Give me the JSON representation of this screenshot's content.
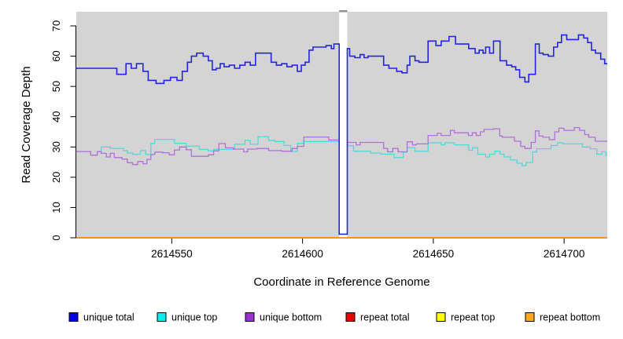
{
  "chart_data": {
    "type": "line",
    "subtype": "step-coverage-plot",
    "title": "",
    "xlabel": "Coordinate in Reference Genome",
    "ylabel": "Read Coverage Depth",
    "xlim": [
      2614513.5,
      2614716.5
    ],
    "ylim": [
      0,
      70
    ],
    "xticks": [
      "2614550",
      "2614600",
      "2614650",
      "2614700"
    ],
    "xtick_values": [
      2614550,
      2614600,
      2614650,
      2614700
    ],
    "yticks": [
      "0",
      "10",
      "20",
      "30",
      "40",
      "50",
      "60",
      "70"
    ],
    "ytick_values": [
      0,
      10,
      20,
      30,
      40,
      50,
      60,
      70
    ],
    "grid": false,
    "legend_position": "bottom-horizontal",
    "panel_bg_color": "#D4D4D4",
    "gap_region": {
      "x0": 2614614.0,
      "x1": 2614617.1,
      "fill": "#FFFFFF",
      "cap_color": "#909090"
    },
    "series": [
      {
        "name": "repeat total",
        "color": "#DD0000",
        "width": 1.4,
        "layer": 1,
        "points": [
          [
            2614513.5,
            0
          ],
          [
            2614716.5,
            0
          ]
        ]
      },
      {
        "name": "repeat top",
        "color": "#FFFF00",
        "width": 1.4,
        "layer": 1,
        "points": [
          [
            2614513.5,
            0
          ],
          [
            2614716.5,
            0
          ]
        ]
      },
      {
        "name": "unique top",
        "color": "#55D8D8",
        "width": 1.3,
        "layer": 1,
        "points": [
          [
            2614513.5,
            28.5
          ],
          [
            2614519,
            27.3
          ],
          [
            2614521.5,
            28.5
          ],
          [
            2614523,
            30
          ],
          [
            2614526.5,
            29.5
          ],
          [
            2614531.5,
            28.8
          ],
          [
            2614533,
            28
          ],
          [
            2614535,
            27.5
          ],
          [
            2614538,
            28.8
          ],
          [
            2614540,
            27.5
          ],
          [
            2614542,
            31.2
          ],
          [
            2614543.5,
            32.5
          ],
          [
            2614551,
            31.2
          ],
          [
            2614555.5,
            30.3
          ],
          [
            2614560.5,
            29.2
          ],
          [
            2614564,
            28.7
          ],
          [
            2614566,
            29.2
          ],
          [
            2614574,
            30.9
          ],
          [
            2614578,
            32.2
          ],
          [
            2614580,
            30.9
          ],
          [
            2614583,
            33.4
          ],
          [
            2614587,
            32.2
          ],
          [
            2614589.5,
            31.8
          ],
          [
            2614593,
            30.5
          ],
          [
            2614595.5,
            28.5
          ],
          [
            2614598,
            31.2
          ],
          [
            2614600.5,
            31.8
          ],
          [
            2614614,
            32
          ],
          [
            2614617.1,
            30.4
          ],
          [
            2614619.5,
            28.6
          ],
          [
            2614626,
            28
          ],
          [
            2614630,
            27.6
          ],
          [
            2614635,
            26.5
          ],
          [
            2614638.5,
            28.3
          ],
          [
            2614640,
            29.8
          ],
          [
            2614643,
            28.6
          ],
          [
            2614648,
            31.4
          ],
          [
            2614653,
            30.7
          ],
          [
            2614654.5,
            31.4
          ],
          [
            2614658,
            30.7
          ],
          [
            2614663.5,
            28.9
          ],
          [
            2614665,
            29.8
          ],
          [
            2614667,
            27.6
          ],
          [
            2614670,
            26.7
          ],
          [
            2614671.5,
            27.6
          ],
          [
            2614673.5,
            28.6
          ],
          [
            2614675.5,
            27.6
          ],
          [
            2614677,
            26.7
          ],
          [
            2614679.5,
            25.7
          ],
          [
            2614682,
            24.6
          ],
          [
            2614684,
            23.8
          ],
          [
            2614685.5,
            24.9
          ],
          [
            2614688,
            28.4
          ],
          [
            2614689.5,
            29.4
          ],
          [
            2614695,
            30.5
          ],
          [
            2614697.5,
            31.4
          ],
          [
            2614699.5,
            31
          ],
          [
            2614707,
            30
          ],
          [
            2614710,
            29.4
          ],
          [
            2614712.5,
            27.6
          ],
          [
            2614714.5,
            28.4
          ],
          [
            2614716,
            27.2
          ]
        ]
      },
      {
        "name": "unique bottom",
        "color": "#B070D8",
        "width": 1.3,
        "layer": 1,
        "points": [
          [
            2614513.5,
            28.5
          ],
          [
            2614519,
            27.3
          ],
          [
            2614521.5,
            28.5
          ],
          [
            2614523,
            27.9
          ],
          [
            2614525,
            26.7
          ],
          [
            2614526.5,
            27.9
          ],
          [
            2614528,
            26.5
          ],
          [
            2614531,
            26
          ],
          [
            2614533,
            24.8
          ],
          [
            2614535,
            24.2
          ],
          [
            2614537,
            25.2
          ],
          [
            2614539,
            24.4
          ],
          [
            2614540.5,
            25.9
          ],
          [
            2614542,
            27.5
          ],
          [
            2614543.5,
            28.3
          ],
          [
            2614546.5,
            28.1
          ],
          [
            2614549,
            27.4
          ],
          [
            2614551,
            29
          ],
          [
            2614553,
            30
          ],
          [
            2614555.5,
            29.1
          ],
          [
            2614557.5,
            26.9
          ],
          [
            2614564,
            27.4
          ],
          [
            2614566,
            28.7
          ],
          [
            2614568,
            31.1
          ],
          [
            2614570.5,
            29.7
          ],
          [
            2614573.5,
            29.3
          ],
          [
            2614577.5,
            28.4
          ],
          [
            2614579,
            29.3
          ],
          [
            2614582.5,
            29.5
          ],
          [
            2614587,
            28.8
          ],
          [
            2614592,
            28.6
          ],
          [
            2614596,
            29.5
          ],
          [
            2614598,
            30.2
          ],
          [
            2614600.5,
            33.3
          ],
          [
            2614608,
            33.3
          ],
          [
            2614610,
            32.3
          ],
          [
            2614617.1,
            31.5
          ],
          [
            2614620.5,
            30.7
          ],
          [
            2614622,
            31.5
          ],
          [
            2614631,
            29.5
          ],
          [
            2614632.5,
            28.4
          ],
          [
            2614634.5,
            29.5
          ],
          [
            2614636.5,
            28.4
          ],
          [
            2614640,
            31.7
          ],
          [
            2614642,
            30.7
          ],
          [
            2614643.5,
            31
          ],
          [
            2614648,
            33.8
          ],
          [
            2614651.5,
            34.5
          ],
          [
            2614653,
            33.8
          ],
          [
            2614656.5,
            35.5
          ],
          [
            2614658,
            34.7
          ],
          [
            2614663.4,
            33.8
          ],
          [
            2614664.9,
            34.7
          ],
          [
            2614666.4,
            33.8
          ],
          [
            2614668,
            35
          ],
          [
            2614669.4,
            35.8
          ],
          [
            2614673,
            36
          ],
          [
            2614675.4,
            33.6
          ],
          [
            2614676.4,
            33.2
          ],
          [
            2614681,
            31.9
          ],
          [
            2614683.4,
            30.2
          ],
          [
            2614685,
            29.5
          ],
          [
            2614687.4,
            31.5
          ],
          [
            2614689,
            35.3
          ],
          [
            2614690.4,
            33.6
          ],
          [
            2614691.9,
            33.2
          ],
          [
            2614694.4,
            32.4
          ],
          [
            2614696.4,
            35
          ],
          [
            2614698,
            36.2
          ],
          [
            2614699.9,
            35.5
          ],
          [
            2614703.9,
            36.4
          ],
          [
            2614705.9,
            35.5
          ],
          [
            2614707.9,
            34.1
          ],
          [
            2614709.4,
            33.2
          ],
          [
            2614711.9,
            31.9
          ],
          [
            2614716.4,
            31.8
          ]
        ]
      },
      {
        "name": "unique total",
        "color": "#2525DC",
        "width": 1.6,
        "layer": 2,
        "points": [
          [
            2614513.5,
            56
          ],
          [
            2614529,
            54
          ],
          [
            2614532.5,
            57.5
          ],
          [
            2614534.5,
            56
          ],
          [
            2614536.5,
            57.5
          ],
          [
            2614539,
            55
          ],
          [
            2614541,
            52
          ],
          [
            2614544,
            51
          ],
          [
            2614547,
            52
          ],
          [
            2614549.5,
            53
          ],
          [
            2614552,
            52
          ],
          [
            2614554,
            55
          ],
          [
            2614556,
            58
          ],
          [
            2614557.5,
            60
          ],
          [
            2614559.5,
            61
          ],
          [
            2614562,
            60
          ],
          [
            2614564,
            58.5
          ],
          [
            2614565.5,
            55.5
          ],
          [
            2614567,
            56
          ],
          [
            2614568.5,
            57.5
          ],
          [
            2614570,
            56.5
          ],
          [
            2614572,
            57
          ],
          [
            2614574,
            56
          ],
          [
            2614576,
            57
          ],
          [
            2614578,
            58
          ],
          [
            2614580,
            57
          ],
          [
            2614582,
            61
          ],
          [
            2614588,
            58
          ],
          [
            2614590,
            57
          ],
          [
            2614592,
            57.5
          ],
          [
            2614594,
            56.5
          ],
          [
            2614596,
            57
          ],
          [
            2614598,
            55
          ],
          [
            2614599.5,
            57
          ],
          [
            2614601,
            58
          ],
          [
            2614602.5,
            62
          ],
          [
            2614604,
            63
          ],
          [
            2614609,
            63.5
          ],
          [
            2614611,
            62.5
          ],
          [
            2614612,
            64
          ],
          [
            2614614,
            1.2
          ],
          [
            2614617.1,
            62.5
          ],
          [
            2614618,
            60
          ],
          [
            2614620,
            59.5
          ],
          [
            2614622,
            60.5
          ],
          [
            2614623.5,
            59.5
          ],
          [
            2614625,
            60
          ],
          [
            2614631,
            57
          ],
          [
            2614633,
            56
          ],
          [
            2614636,
            55
          ],
          [
            2614638,
            54.5
          ],
          [
            2614640,
            57
          ],
          [
            2614641,
            60
          ],
          [
            2614643,
            58.5
          ],
          [
            2614644.5,
            58
          ],
          [
            2614648,
            65
          ],
          [
            2614651,
            63.5
          ],
          [
            2614653,
            65
          ],
          [
            2614656,
            66.5
          ],
          [
            2614658.5,
            64
          ],
          [
            2614663.5,
            62.5
          ],
          [
            2614666,
            61
          ],
          [
            2614667.5,
            62
          ],
          [
            2614669,
            61
          ],
          [
            2614670,
            63
          ],
          [
            2614671.5,
            61
          ],
          [
            2614673,
            65
          ],
          [
            2614675.5,
            58.5
          ],
          [
            2614678,
            57
          ],
          [
            2614680,
            56.5
          ],
          [
            2614681.5,
            55.5
          ],
          [
            2614683,
            53
          ],
          [
            2614685,
            51.5
          ],
          [
            2614686.5,
            54
          ],
          [
            2614689,
            64
          ],
          [
            2614690.5,
            61
          ],
          [
            2614692,
            60.5
          ],
          [
            2614694,
            60
          ],
          [
            2614696,
            63
          ],
          [
            2614697.5,
            64.5
          ],
          [
            2614699,
            67
          ],
          [
            2614701,
            65.5
          ],
          [
            2614705.5,
            67
          ],
          [
            2614707.5,
            66
          ],
          [
            2614709,
            64.5
          ],
          [
            2614710.5,
            62
          ],
          [
            2614712,
            61
          ],
          [
            2614714,
            59
          ],
          [
            2614715.5,
            57.5
          ]
        ]
      },
      {
        "name": "repeat bottom",
        "color": "#FF9020",
        "width": 1.8,
        "layer": 2,
        "points": [
          [
            2614513.5,
            0
          ],
          [
            2614716.5,
            0
          ]
        ]
      }
    ],
    "legend": [
      {
        "label": "unique total",
        "color": "#0000EE"
      },
      {
        "label": "unique top",
        "color": "#00EEEE"
      },
      {
        "label": "unique bottom",
        "color": "#9933CC"
      },
      {
        "label": "repeat total",
        "color": "#EE0000"
      },
      {
        "label": "repeat top",
        "color": "#FFFF00"
      },
      {
        "label": "repeat bottom",
        "color": "#FFA520"
      }
    ]
  }
}
